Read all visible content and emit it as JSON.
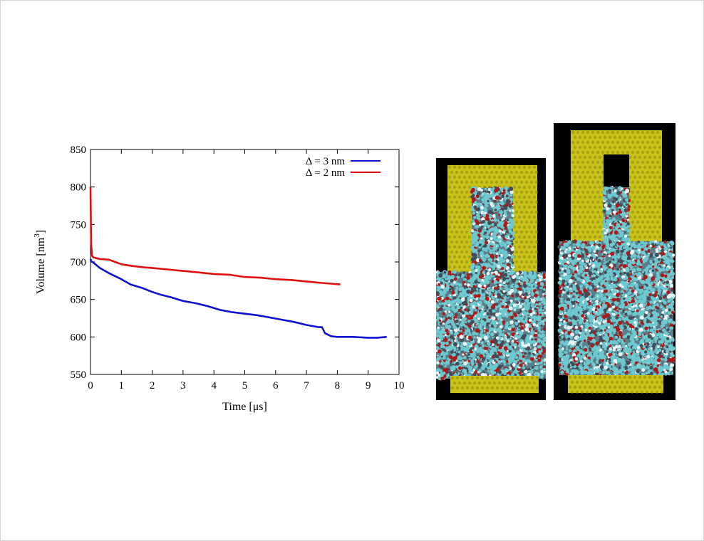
{
  "chart_data": {
    "type": "line",
    "xlabel": "Time [μs]",
    "ylabel": "Volume [nm",
    "ylabel_sup": "3",
    "ylabel_end": "]",
    "xlim": [
      0,
      10
    ],
    "ylim": [
      550,
      850
    ],
    "x_ticks": [
      "0",
      "1",
      "2",
      "3",
      "4",
      "5",
      "6",
      "7",
      "8",
      "9",
      "10"
    ],
    "y_ticks": [
      "550",
      "600",
      "650",
      "700",
      "750",
      "800",
      "850"
    ],
    "legend_position": "top-right",
    "series": [
      {
        "name": "Δ = 3 nm",
        "color": "#1010d0",
        "x": [
          0,
          0.02,
          0.1,
          0.3,
          0.6,
          0.9,
          1.0,
          1.3,
          1.7,
          2.0,
          2.3,
          2.6,
          3.0,
          3.4,
          3.8,
          4.2,
          4.6,
          5.0,
          5.4,
          5.8,
          6.2,
          6.6,
          7.0,
          7.4,
          7.5,
          7.6,
          7.8,
          8.0,
          8.5,
          9.0,
          9.3,
          9.6
        ],
        "y": [
          704,
          701,
          699,
          692,
          685,
          679,
          677,
          670,
          665,
          660,
          656,
          653,
          648,
          645,
          641,
          636,
          633,
          631,
          629,
          626,
          623,
          620,
          616,
          613,
          613,
          605,
          601,
          600,
          600,
          599,
          599,
          600
        ]
      },
      {
        "name": "Δ = 2 nm",
        "color": "#e01010",
        "x": [
          0,
          0.02,
          0.05,
          0.1,
          0.3,
          0.6,
          0.8,
          1.0,
          1.3,
          1.7,
          2.0,
          2.5,
          3.0,
          3.5,
          4.0,
          4.5,
          5.0,
          5.5,
          6.0,
          6.5,
          7.0,
          7.5,
          7.8,
          8.1
        ],
        "y": [
          800,
          725,
          708,
          706,
          704,
          703,
          700,
          697,
          695,
          693,
          692,
          690,
          688,
          686,
          684,
          683,
          680,
          679,
          677,
          676,
          674,
          672,
          671,
          670
        ]
      }
    ]
  },
  "images": {
    "left": {
      "description": "molecular simulation snapshot, narrow gap"
    },
    "right": {
      "description": "molecular simulation snapshot, wide gap"
    }
  },
  "colors": {
    "gold": "#c8c21a",
    "gold_dark": "#8f8a0d",
    "water_cyan": "#6cc9cf",
    "oxygen_red": "#b01818",
    "background": "#000000"
  }
}
